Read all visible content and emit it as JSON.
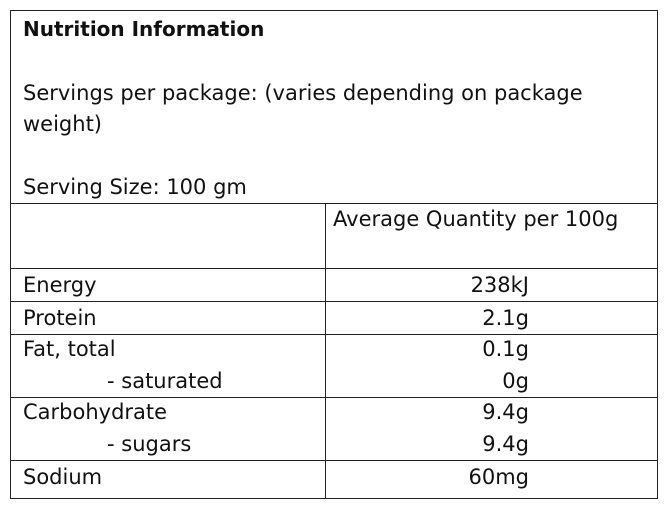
{
  "title": "Nutrition Information",
  "servings": "Servings per package: (varies depending on package weight)",
  "serving_size": "Serving Size: 100 gm",
  "table": {
    "header": "Average Quantity per 100g",
    "rows": [
      {
        "lines": [
          {
            "label": "Energy",
            "value": "238kJ"
          }
        ]
      },
      {
        "lines": [
          {
            "label": "Protein",
            "value": "2.1g"
          }
        ]
      },
      {
        "lines": [
          {
            "label": "Fat, total",
            "value": "0.1g"
          },
          {
            "label": "- saturated",
            "value": "0g"
          }
        ]
      },
      {
        "lines": [
          {
            "label": "Carbohydrate",
            "value": "9.4g"
          },
          {
            "label": "- sugars",
            "value": "9.4g"
          }
        ]
      },
      {
        "lines": [
          {
            "label": "Sodium",
            "value": "60mg"
          }
        ]
      }
    ]
  }
}
